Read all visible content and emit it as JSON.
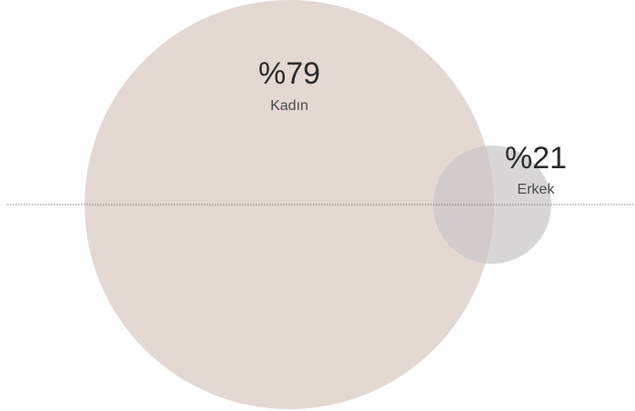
{
  "chart_data": {
    "type": "bubble",
    "title": "",
    "series": [
      {
        "name": "Kadın",
        "label": "%79",
        "value": 79,
        "color": "#e4d8d2"
      },
      {
        "name": "Erkek",
        "label": "%21",
        "value": 21,
        "color": "#c9c6c8"
      }
    ],
    "baseline": true
  }
}
